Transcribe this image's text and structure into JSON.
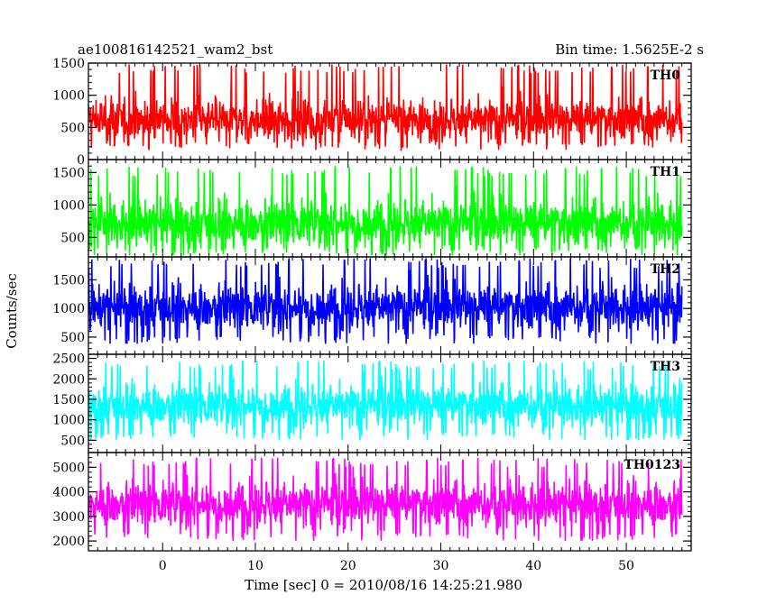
{
  "chart_data": {
    "type": "line",
    "title": "ae100816142521_wam2_bst",
    "subtitle": "Bin time: 1.5625E-2 s",
    "xlabel": "Time [sec] 0 = 2010/08/16 14:25:21.980",
    "ylabel": "Counts/sec",
    "xlim": [
      -8,
      57
    ],
    "x_ticks": [
      0,
      10,
      20,
      30,
      40,
      50
    ],
    "x_start": -8,
    "x_end": 56,
    "panels": [
      {
        "name": "TH0",
        "color": "#ff0000",
        "ylim": [
          0,
          1500
        ],
        "y_ticks": [
          0,
          500,
          1000,
          1500
        ],
        "mean": 620,
        "spread": 230,
        "floor": 150,
        "ceiling": 1480
      },
      {
        "name": "TH1",
        "color": "#00ff00",
        "ylim": [
          200,
          1700
        ],
        "y_ticks": [
          500,
          1000,
          1500
        ],
        "mean": 720,
        "spread": 260,
        "floor": 220,
        "ceiling": 1600
      },
      {
        "name": "TH2",
        "color": "#0000ff",
        "ylim": [
          200,
          1900
        ],
        "y_ticks": [
          500,
          1000,
          1500
        ],
        "mean": 1020,
        "spread": 290,
        "floor": 380,
        "ceiling": 1880
      },
      {
        "name": "TH3",
        "color": "#00ffff",
        "ylim": [
          200,
          2600
        ],
        "y_ticks": [
          500,
          1000,
          1500,
          2000,
          2500
        ],
        "mean": 1350,
        "spread": 370,
        "floor": 500,
        "ceiling": 2450
      },
      {
        "name": "TH0123",
        "color": "#ff00ff",
        "ylim": [
          1600,
          5600
        ],
        "y_ticks": [
          2000,
          3000,
          4000,
          5000
        ],
        "mean": 3500,
        "spread": 650,
        "floor": 2000,
        "ceiling": 5400
      }
    ]
  }
}
